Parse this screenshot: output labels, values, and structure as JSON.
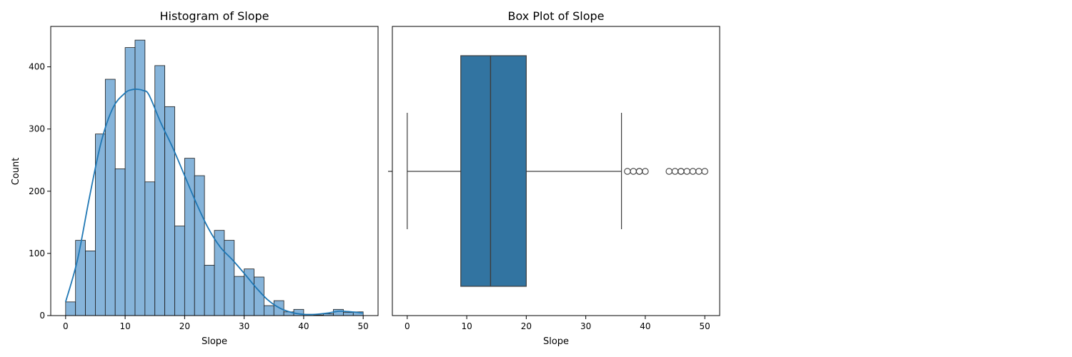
{
  "chart_data": [
    {
      "type": "bar",
      "subtype": "histogram-with-kde",
      "title": "Histogram of Slope",
      "xlabel": "Slope",
      "ylabel": "Count",
      "xlim": [
        -2.5,
        52.5
      ],
      "ylim": [
        0,
        465
      ],
      "x_ticks": [
        0,
        10,
        20,
        30,
        40,
        50
      ],
      "y_ticks": [
        0,
        100,
        200,
        300,
        400
      ],
      "bin_edges": [
        0,
        1.667,
        3.333,
        5,
        6.667,
        8.333,
        10,
        11.667,
        13.333,
        15,
        16.667,
        18.333,
        20,
        21.667,
        23.333,
        25,
        26.667,
        28.333,
        30,
        31.667,
        33.333,
        35,
        36.667,
        38.333,
        40,
        41.667,
        43.333,
        45,
        46.667,
        48.333,
        50
      ],
      "counts": [
        22,
        121,
        104,
        292,
        380,
        236,
        431,
        443,
        215,
        402,
        336,
        144,
        253,
        225,
        81,
        137,
        121,
        63,
        75,
        62,
        16,
        24,
        6,
        10,
        2,
        1,
        3,
        10,
        5,
        6
      ],
      "kde_x": [
        0,
        2,
        4,
        6,
        8,
        10,
        11,
        12,
        13,
        14,
        16,
        18,
        20,
        22,
        24,
        26,
        28,
        30,
        32,
        34,
        36,
        38,
        40,
        42,
        44,
        46,
        48,
        50
      ],
      "kde_y": [
        22,
        90,
        190,
        280,
        335,
        358,
        363,
        364,
        362,
        355,
        310,
        270,
        225,
        180,
        140,
        110,
        90,
        68,
        45,
        25,
        12,
        5,
        2,
        2,
        4,
        7,
        6,
        4
      ],
      "grid": false,
      "bar_color": "#86b4da",
      "line_color": "#1f77b4"
    },
    {
      "type": "box",
      "title": "Box Plot of Slope",
      "xlabel": "Slope",
      "ylabel": "",
      "xlim": [
        -2.5,
        52.5
      ],
      "x_ticks": [
        0,
        10,
        20,
        30,
        40,
        50
      ],
      "whisker_low": 0,
      "q1": 9,
      "median": 14,
      "q3": 20,
      "whisker_high": 36,
      "outliers": [
        37,
        38,
        39,
        39,
        40,
        44,
        45,
        46,
        46,
        47,
        48,
        49,
        50
      ],
      "grid": false,
      "box_color": "#3274a1"
    }
  ]
}
